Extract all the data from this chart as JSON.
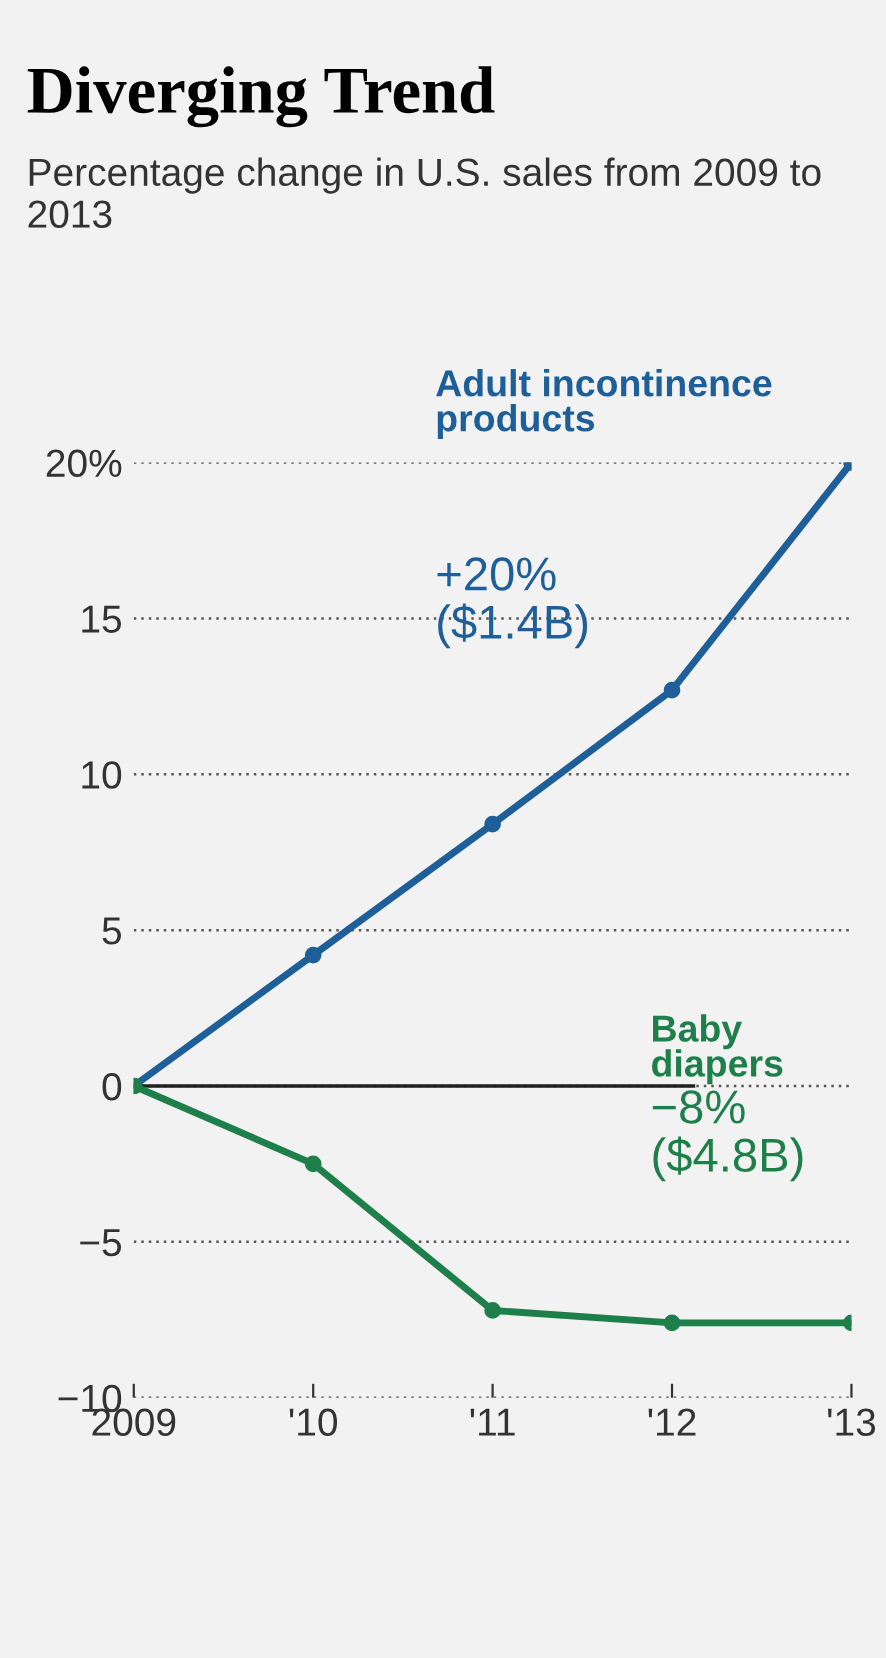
{
  "chart_data": {
    "type": "line",
    "title": "Diverging Trend",
    "subtitle": "Percentage change in U.S. sales from 2009 to 2013",
    "x": [
      2009,
      2010,
      2011,
      2012,
      2013
    ],
    "series": [
      {
        "name": "Adult incontinence products",
        "color": "#1f5f99",
        "values": [
          0,
          4.2,
          8.4,
          12.7,
          20
        ]
      },
      {
        "name": "Baby diapers",
        "color": "#1e7f4a",
        "values": [
          0,
          -2.5,
          -7.2,
          -7.6,
          -7.6
        ]
      }
    ],
    "annotations": [
      "+20%\n($1.4B)",
      "−8%\n($4.8B)"
    ],
    "xlim": [
      2009,
      2013
    ],
    "xticks": [
      {
        "value": 2009,
        "label": "2009"
      },
      {
        "value": 2010,
        "label": "'10"
      },
      {
        "value": 2011,
        "label": "'11"
      },
      {
        "value": 2012,
        "label": "'12"
      },
      {
        "value": 2013,
        "label": "'13"
      }
    ],
    "ylim": [
      -10,
      20
    ],
    "yticks": [
      {
        "value": -10,
        "label": "−10"
      },
      {
        "value": -5,
        "label": "−5"
      },
      0,
      5,
      10,
      15,
      {
        "value": 20,
        "label": "20%"
      }
    ],
    "ref_lines": [
      {
        "axis": "y",
        "value": 0,
        "color": "#222222"
      }
    ],
    "grid": "y",
    "marker": "circle",
    "line_style": "solid",
    "legend": false
  }
}
